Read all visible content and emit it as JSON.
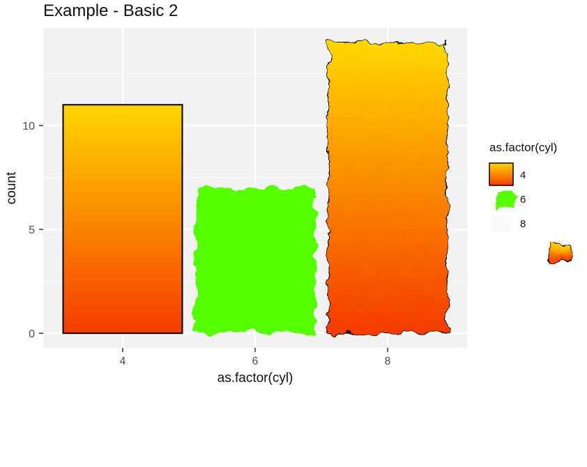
{
  "chart_data": {
    "type": "bar",
    "title": "Example - Basic 2",
    "xlabel": "as.factor(cyl)",
    "ylabel": "count",
    "categories": [
      "4",
      "6",
      "8"
    ],
    "values": [
      11,
      7,
      14
    ],
    "ylim": [
      -0.7,
      14.7
    ],
    "yticks": [
      0,
      5,
      10
    ],
    "grid": true,
    "legend": {
      "title": "as.factor(cyl)",
      "placement": "right",
      "entries": [
        "4",
        "6",
        "8"
      ]
    },
    "fills": {
      "4": {
        "type": "gradient",
        "top": "#ffd700",
        "bottom": "#f53b00"
      },
      "6": {
        "type": "solid",
        "color": "#55ff00",
        "texture": "rough-edged"
      },
      "8": {
        "type": "gradient",
        "top": "#ffd700",
        "bottom": "#f53b00",
        "texture": "rough-edged"
      }
    },
    "panel_background": "#f2f2f2",
    "grid_color": "#ffffff"
  }
}
